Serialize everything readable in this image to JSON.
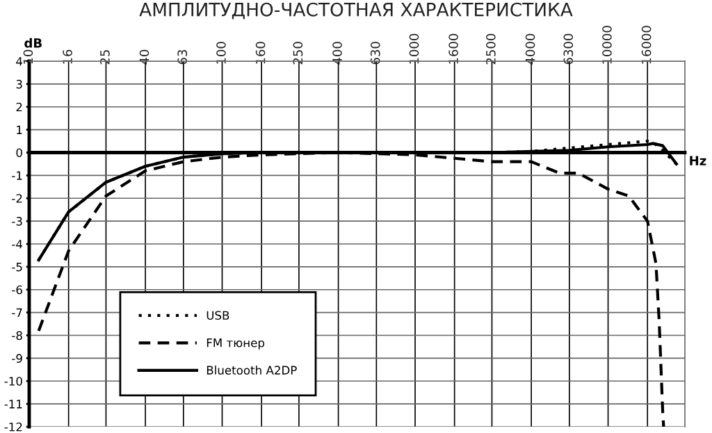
{
  "chart_data": {
    "type": "line",
    "title": "АМПЛИТУДНО-ЧАСТОТНАЯ ХАРАКТЕРИСТИКА",
    "xlabel": "Hz",
    "ylabel": "dB",
    "log": "x",
    "xlim": [
      10,
      25000
    ],
    "xticks": [
      10,
      16,
      25,
      40,
      63,
      100,
      160,
      250,
      400,
      630,
      1000,
      1600,
      2500,
      4000,
      6300,
      10000,
      16000
    ],
    "ylim": [
      -12,
      4
    ],
    "yticks": [
      -12,
      -11,
      -10,
      -9,
      -8,
      -7,
      -6,
      -5,
      -4,
      -3,
      -2,
      -1,
      0,
      1,
      2,
      3,
      4
    ],
    "grid": true,
    "legend": "bottom left",
    "marker": "none",
    "series": [
      {
        "name": "USB",
        "color": "#000000",
        "line_style": "dotted",
        "x": [
          11.2,
          16,
          25,
          40,
          63,
          100,
          160,
          250,
          400,
          630,
          1000,
          1600,
          2500,
          4000,
          6300,
          10000,
          16000,
          17100,
          19200,
          22600
        ],
        "values": [
          -4.7,
          -2.6,
          -1.3,
          -0.6,
          -0.2,
          -0.05,
          0,
          0,
          0,
          0,
          0,
          0,
          0,
          0.05,
          0.2,
          0.35,
          0.5,
          0.45,
          0.1,
          -0.5
        ]
      },
      {
        "name": "FM тюнер",
        "color": "#000000",
        "line_style": "dashed",
        "x": [
          11.2,
          16,
          25,
          40,
          63,
          100,
          160,
          250,
          400,
          630,
          1000,
          1600,
          2500,
          4000,
          5600,
          7000,
          10000,
          12800,
          16000,
          17700,
          18400,
          19200,
          19400
        ],
        "values": [
          -7.8,
          -4.3,
          -1.9,
          -0.8,
          -0.4,
          -0.2,
          -0.1,
          -0.05,
          0,
          -0.05,
          -0.1,
          -0.25,
          -0.4,
          -0.4,
          -0.9,
          -0.9,
          -1.6,
          -1.9,
          -3.0,
          -4.85,
          -7.4,
          -11.4,
          -12
        ]
      },
      {
        "name": "Bluetooth A2DP",
        "color": "#000000",
        "line_style": "solid",
        "x": [
          11.2,
          16,
          25,
          40,
          63,
          100,
          160,
          250,
          400,
          630,
          1000,
          1600,
          2500,
          4000,
          6300,
          10000,
          16000,
          17100,
          19200,
          22600
        ],
        "values": [
          -4.7,
          -2.6,
          -1.3,
          -0.6,
          -0.2,
          -0.05,
          0,
          0,
          0,
          0,
          0,
          0,
          0,
          0.05,
          0.1,
          0.25,
          0.35,
          0.4,
          0.3,
          -0.5
        ]
      }
    ]
  }
}
